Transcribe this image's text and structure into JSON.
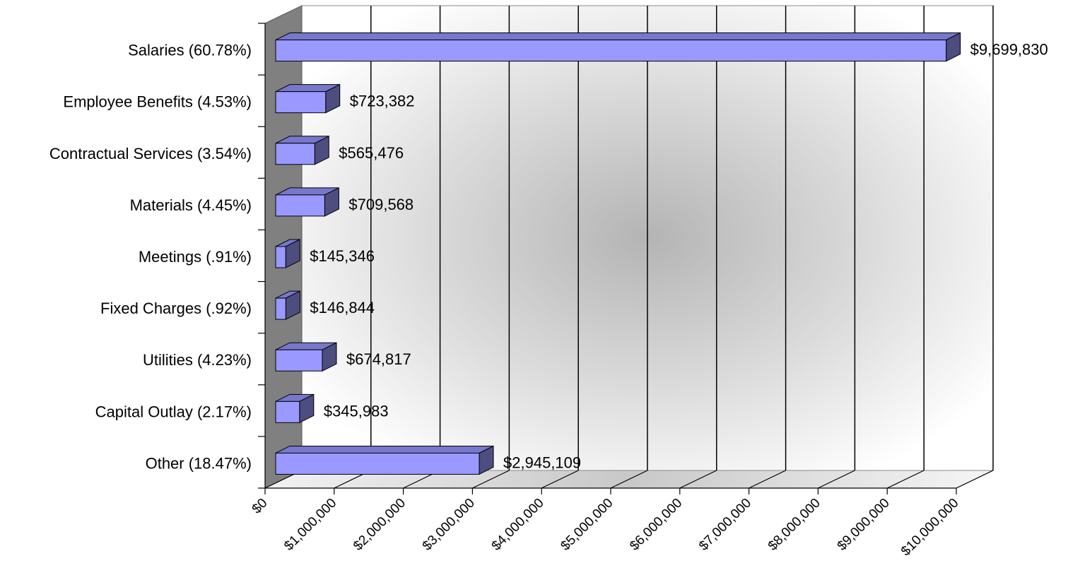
{
  "chart_data": {
    "type": "bar",
    "orientation": "horizontal",
    "style": "3d",
    "categories": [
      "Salaries (60.78%)",
      "Employee Benefits (4.53%)",
      "Contractual Services (3.54%)",
      "Materials (4.45%)",
      "Meetings (.91%)",
      "Fixed Charges (.92%)",
      "Utilities (4.23%)",
      "Capital Outlay (2.17%)",
      "Other (18.47%)"
    ],
    "values": [
      9699830,
      723382,
      565476,
      709568,
      145346,
      146844,
      674817,
      345983,
      2945109
    ],
    "value_labels": [
      "$9,699,830",
      "$723,382",
      "$565,476",
      "$709,568",
      "$145,346",
      "$146,844",
      "$674,817",
      "$345,983",
      "$2,945,109"
    ],
    "x_ticks": [
      0,
      1000000,
      2000000,
      3000000,
      4000000,
      5000000,
      6000000,
      7000000,
      8000000,
      9000000,
      10000000
    ],
    "x_tick_labels": [
      "$0",
      "$1,000,000",
      "$2,000,000",
      "$3,000,000",
      "$4,000,000",
      "$5,000,000",
      "$6,000,000",
      "$7,000,000",
      "$8,000,000",
      "$9,000,000",
      "$10,000,000"
    ],
    "xlim": [
      0,
      10000000
    ],
    "grid": true,
    "legend": "none",
    "colors": {
      "bar_front": "#9999ff",
      "bar_top": "#7777cc",
      "bar_side": "#4d4d80",
      "left_wall": "#808080",
      "gridline": "#000000"
    }
  }
}
